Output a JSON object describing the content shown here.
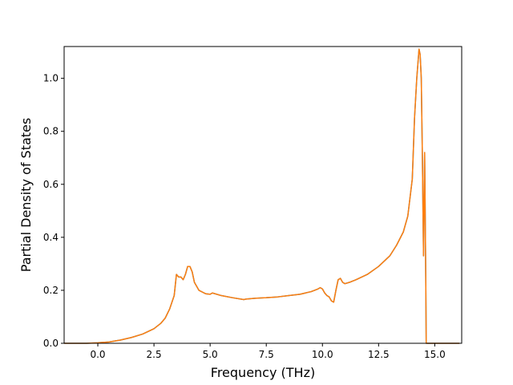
{
  "chart_data": {
    "type": "line",
    "xlabel": "Frequency (THz)",
    "ylabel": "Partial Density of States",
    "xlim": [
      -1.5,
      16.2
    ],
    "ylim": [
      0.0,
      1.12
    ],
    "xticks": [
      "0.0",
      "2.5",
      "5.0",
      "7.5",
      "10.0",
      "12.5",
      "15.0"
    ],
    "yticks": [
      "0.0",
      "0.2",
      "0.4",
      "0.6",
      "0.8",
      "1.0"
    ],
    "grid": false,
    "series": [
      {
        "color": "#1f77b4",
        "x": [
          -1.5,
          -0.5,
          0.0,
          0.5,
          1.0,
          1.5,
          2.0,
          2.5,
          2.8,
          3.0,
          3.2,
          3.4,
          3.5,
          3.6,
          3.7,
          3.8,
          3.9,
          4.0,
          4.1,
          4.2,
          4.3,
          4.5,
          4.8,
          5.0,
          5.1,
          5.5,
          6.0,
          6.5,
          6.6,
          7.0,
          7.5,
          8.0,
          8.5,
          9.0,
          9.5,
          9.8,
          9.9,
          10.0,
          10.1,
          10.2,
          10.3,
          10.4,
          10.5,
          10.6,
          10.7,
          10.8,
          10.9,
          11.0,
          11.2,
          11.5,
          12.0,
          12.5,
          13.0,
          13.3,
          13.6,
          13.8,
          14.0,
          14.1,
          14.2,
          14.3,
          14.35,
          14.4,
          14.45,
          14.5,
          14.55,
          14.6,
          14.62,
          15.0,
          16.1
        ],
        "y": [
          0.0,
          0.0,
          0.002,
          0.005,
          0.012,
          0.022,
          0.035,
          0.055,
          0.075,
          0.095,
          0.13,
          0.18,
          0.26,
          0.25,
          0.25,
          0.24,
          0.26,
          0.29,
          0.29,
          0.27,
          0.23,
          0.2,
          0.187,
          0.185,
          0.19,
          0.18,
          0.172,
          0.165,
          0.167,
          0.17,
          0.172,
          0.175,
          0.18,
          0.185,
          0.195,
          0.205,
          0.21,
          0.205,
          0.19,
          0.18,
          0.175,
          0.16,
          0.155,
          0.2,
          0.24,
          0.245,
          0.23,
          0.225,
          0.23,
          0.24,
          0.26,
          0.29,
          0.33,
          0.37,
          0.42,
          0.48,
          0.62,
          0.85,
          1.0,
          1.11,
          1.09,
          1.0,
          0.7,
          0.33,
          0.72,
          0.25,
          0.0,
          0.0,
          0.0
        ]
      },
      {
        "color": "#ff7f0e",
        "x": [
          -1.5,
          -0.5,
          0.0,
          0.5,
          1.0,
          1.5,
          2.0,
          2.5,
          2.8,
          3.0,
          3.2,
          3.4,
          3.5,
          3.6,
          3.7,
          3.8,
          3.9,
          4.0,
          4.1,
          4.2,
          4.3,
          4.5,
          4.8,
          5.0,
          5.1,
          5.5,
          6.0,
          6.5,
          6.6,
          7.0,
          7.5,
          8.0,
          8.5,
          9.0,
          9.5,
          9.8,
          9.9,
          10.0,
          10.1,
          10.2,
          10.3,
          10.4,
          10.5,
          10.6,
          10.7,
          10.8,
          10.9,
          11.0,
          11.2,
          11.5,
          12.0,
          12.5,
          13.0,
          13.3,
          13.6,
          13.8,
          14.0,
          14.1,
          14.2,
          14.3,
          14.35,
          14.4,
          14.45,
          14.5,
          14.55,
          14.6,
          14.62,
          15.0,
          16.1
        ],
        "y": [
          0.0,
          0.0,
          0.002,
          0.005,
          0.012,
          0.022,
          0.035,
          0.055,
          0.075,
          0.095,
          0.13,
          0.18,
          0.26,
          0.25,
          0.25,
          0.24,
          0.26,
          0.29,
          0.29,
          0.27,
          0.23,
          0.2,
          0.187,
          0.185,
          0.19,
          0.18,
          0.172,
          0.165,
          0.167,
          0.17,
          0.172,
          0.175,
          0.18,
          0.185,
          0.195,
          0.205,
          0.21,
          0.205,
          0.19,
          0.18,
          0.175,
          0.16,
          0.155,
          0.2,
          0.24,
          0.245,
          0.23,
          0.225,
          0.23,
          0.24,
          0.26,
          0.29,
          0.33,
          0.37,
          0.42,
          0.48,
          0.62,
          0.85,
          1.0,
          1.11,
          1.09,
          1.0,
          0.7,
          0.33,
          0.72,
          0.25,
          0.0,
          0.0,
          0.0
        ]
      }
    ]
  }
}
